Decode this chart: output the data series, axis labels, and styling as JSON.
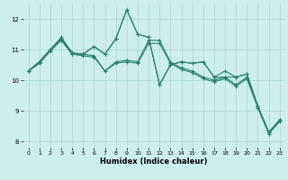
{
  "xlabel": "Humidex (Indice chaleur)",
  "bg_color": "#cceeed",
  "grid_color": "#aad8d6",
  "line_color": "#2e7d6e",
  "marker": "+",
  "xlim": [
    -0.5,
    23.5
  ],
  "ylim": [
    7.8,
    12.5
  ],
  "yticks": [
    8,
    9,
    10,
    11,
    12
  ],
  "xticks": [
    0,
    1,
    2,
    3,
    4,
    5,
    6,
    7,
    8,
    9,
    10,
    11,
    12,
    13,
    14,
    15,
    16,
    17,
    18,
    19,
    20,
    21,
    22,
    23
  ],
  "lines": [
    [
      10.3,
      10.6,
      11.0,
      11.4,
      10.9,
      10.85,
      10.8,
      10.3,
      10.6,
      10.65,
      10.6,
      11.3,
      11.3,
      10.6,
      10.4,
      10.3,
      10.1,
      10.0,
      10.1,
      9.85,
      10.1,
      9.15,
      8.3,
      8.7
    ],
    [
      10.3,
      10.6,
      11.0,
      11.35,
      10.85,
      10.85,
      11.1,
      10.85,
      11.35,
      12.3,
      11.5,
      11.4,
      9.85,
      10.5,
      10.6,
      10.55,
      10.6,
      10.1,
      10.3,
      10.1,
      10.2,
      9.15,
      8.3,
      8.7
    ],
    [
      10.3,
      10.6,
      11.0,
      11.35,
      10.85,
      10.85,
      11.1,
      10.85,
      11.35,
      12.3,
      11.5,
      11.4,
      9.85,
      10.5,
      10.6,
      10.55,
      10.6,
      10.1,
      10.1,
      10.1,
      10.2,
      9.15,
      8.3,
      8.7
    ],
    [
      10.3,
      10.55,
      10.95,
      11.3,
      10.85,
      10.8,
      10.75,
      10.3,
      10.55,
      10.6,
      10.55,
      11.2,
      11.2,
      10.55,
      10.35,
      10.25,
      10.05,
      9.95,
      10.05,
      9.8,
      10.05,
      9.1,
      8.25,
      8.65
    ]
  ]
}
